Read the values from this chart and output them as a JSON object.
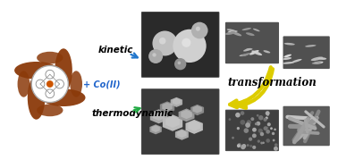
{
  "bg_color": "#ffffff",
  "kinetic_label": "kinetic",
  "thermo_label": "thermodynamic",
  "cobalt_label": "+ Co(II)",
  "transform_label": "transformation",
  "kinetic_arrow_color": "#2277cc",
  "thermo_arrow_color": "#22aa44",
  "transform_arrow_color": "#ddcc00",
  "cobalt_color": "#2266cc",
  "porphyrin_color": "#8B3A0A",
  "porphyrin_inner": "#dddddd"
}
